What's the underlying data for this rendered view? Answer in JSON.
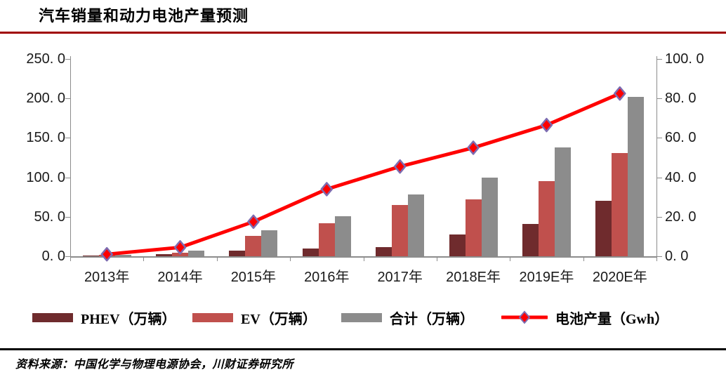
{
  "title": "汽车销量和动力电池产量预测",
  "source_note": "资料来源：中国化学与物理电源协会，川财证券研究所",
  "colors": {
    "title_rule": "#A00000",
    "axis": "#8c8c8c",
    "phev": "#6F2B2D",
    "ev": "#C0504D",
    "total": "#8C8C8C",
    "line": "#FF0000",
    "marker_fill": "#FF0000",
    "marker_stroke": "#7D6BB0"
  },
  "chart_data": {
    "type": "bar+line combo",
    "categories": [
      "2013年",
      "2014年",
      "2015年",
      "2016年",
      "2017年",
      "2018E年",
      "2019E年",
      "2020E年"
    ],
    "series": [
      {
        "name": "PHEV（万辆）",
        "kind": "bar",
        "axis": "left",
        "color": "#6F2B2D",
        "values": [
          0.3,
          2.5,
          7.5,
          9.5,
          11.5,
          28.0,
          40.5,
          70.0
        ]
      },
      {
        "name": "EV（万辆）",
        "kind": "bar",
        "axis": "left",
        "color": "#C0504D",
        "values": [
          1.5,
          4.5,
          25.5,
          41.5,
          65.0,
          72.5,
          95.5,
          131.0
        ]
      },
      {
        "name": "合计（万辆）",
        "kind": "bar",
        "axis": "left",
        "color": "#8C8C8C",
        "values": [
          1.8,
          7.5,
          33.0,
          50.5,
          78.0,
          100.0,
          137.5,
          202.0
        ]
      },
      {
        "name": "电池产量（Gwh）",
        "kind": "line",
        "axis": "right",
        "color": "#FF0000",
        "values": [
          1.0,
          4.5,
          17.5,
          34.0,
          45.5,
          55.0,
          66.5,
          82.5
        ]
      }
    ],
    "left_axis": {
      "min": 0,
      "max": 250,
      "tick_labels": [
        "0. 0",
        "50. 0",
        "100. 0",
        "150. 0",
        "200. 0",
        "250. 0"
      ]
    },
    "right_axis": {
      "min": 0,
      "max": 100,
      "tick_labels": [
        "0. 0",
        "20. 0",
        "40. 0",
        "60. 0",
        "80. 0",
        "100. 0"
      ]
    },
    "legend_position": "bottom",
    "grid": "off"
  }
}
